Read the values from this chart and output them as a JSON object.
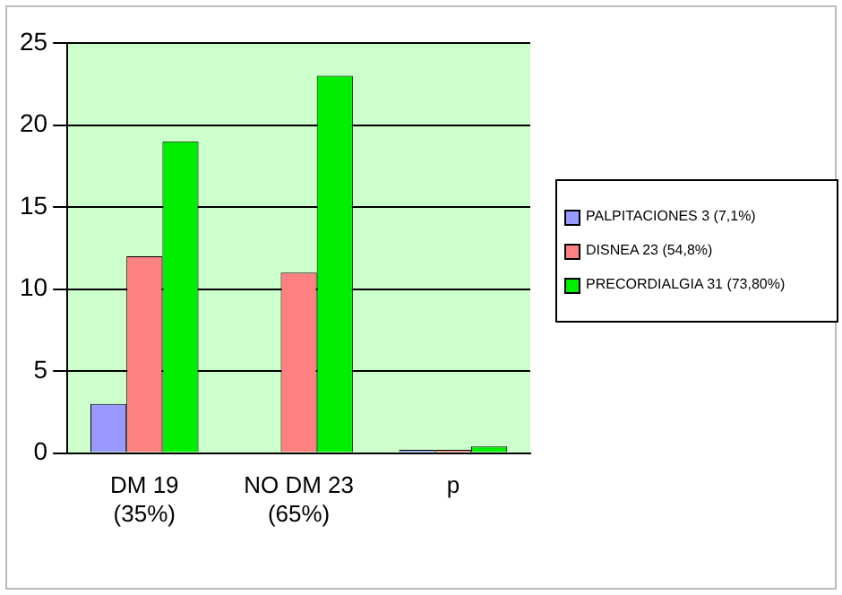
{
  "chart_data": {
    "type": "bar",
    "categories": [
      "DM 19\n(35%)",
      "NO DM 23\n(65%)",
      "p"
    ],
    "series": [
      {
        "name": "PALPITACIONES 3 (7,1%)",
        "color": "#9999ff",
        "values": [
          3,
          0,
          0.2
        ]
      },
      {
        "name": "DISNEA 23 (54,8%)",
        "color": "#ff8080",
        "values": [
          12,
          11,
          0.2
        ]
      },
      {
        "name": "PRECORDIALGIA 31 (73,80%)",
        "color": "#00ee00",
        "values": [
          19,
          23,
          0.4
        ]
      }
    ],
    "ylim": [
      0,
      25
    ],
    "yticks": [
      0,
      5,
      10,
      15,
      20,
      25
    ],
    "grid": "y",
    "legend": "right"
  }
}
